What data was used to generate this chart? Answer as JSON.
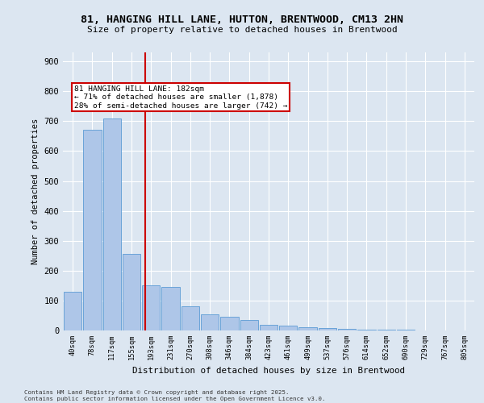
{
  "title_line1": "81, HANGING HILL LANE, HUTTON, BRENTWOOD, CM13 2HN",
  "title_line2": "Size of property relative to detached houses in Brentwood",
  "xlabel": "Distribution of detached houses by size in Brentwood",
  "ylabel": "Number of detached properties",
  "categories": [
    "40sqm",
    "78sqm",
    "117sqm",
    "155sqm",
    "193sqm",
    "231sqm",
    "270sqm",
    "308sqm",
    "346sqm",
    "384sqm",
    "423sqm",
    "461sqm",
    "499sqm",
    "537sqm",
    "576sqm",
    "614sqm",
    "652sqm",
    "690sqm",
    "729sqm",
    "767sqm",
    "805sqm"
  ],
  "values": [
    130,
    670,
    710,
    255,
    150,
    145,
    80,
    55,
    45,
    35,
    20,
    15,
    10,
    8,
    5,
    3,
    2,
    2,
    1,
    1,
    1
  ],
  "bar_color": "#aec6e8",
  "bar_edge_color": "#5b9bd5",
  "background_color": "#dce6f1",
  "grid_color": "#ffffff",
  "vline_x": 3.68,
  "vline_color": "#cc0000",
  "annotation_text": "81 HANGING HILL LANE: 182sqm\n← 71% of detached houses are smaller (1,878)\n28% of semi-detached houses are larger (742) →",
  "annotation_box_color": "#cc0000",
  "footer_line1": "Contains HM Land Registry data © Crown copyright and database right 2025.",
  "footer_line2": "Contains public sector information licensed under the Open Government Licence v3.0.",
  "ylim": [
    0,
    930
  ],
  "yticks": [
    0,
    100,
    200,
    300,
    400,
    500,
    600,
    700,
    800,
    900
  ]
}
